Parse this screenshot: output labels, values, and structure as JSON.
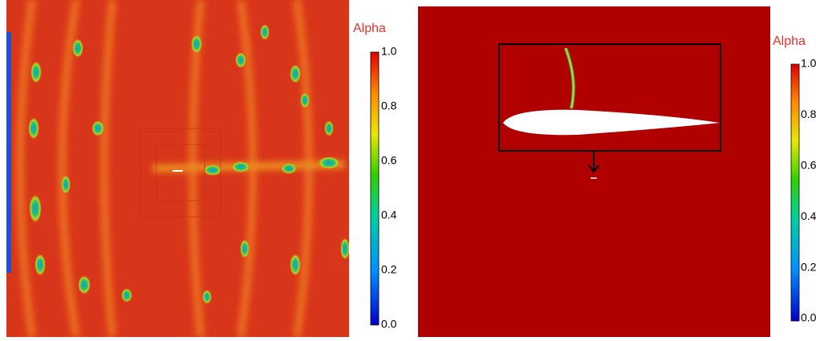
{
  "panels": [
    {
      "colorbar": {
        "title": "Alpha",
        "ticks": [
          "1.0",
          "0.8",
          "0.6",
          "0.4",
          "0.2",
          "0.0"
        ]
      }
    },
    {
      "colorbar": {
        "title": "Alpha",
        "ticks": [
          "1.0",
          "0.8",
          "0.6",
          "0.4",
          "0.2",
          "0.0"
        ]
      }
    }
  ]
}
